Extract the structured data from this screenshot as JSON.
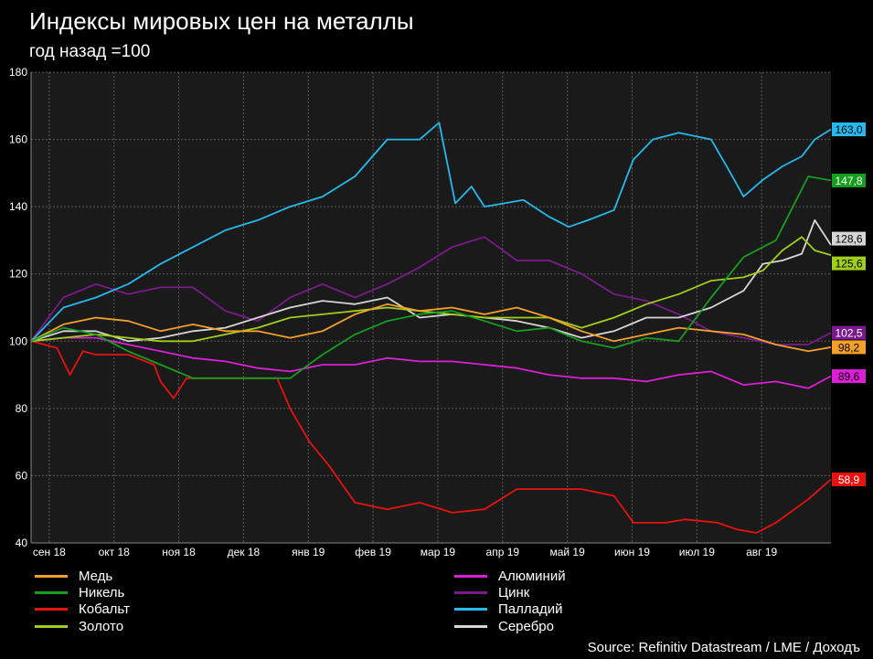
{
  "title": "Индексы мировых цен на металлы",
  "subtitle": "год назад =100",
  "source": "Source: Refinitiv Datastream / LME / Доходъ",
  "chart_data": {
    "type": "line",
    "ylim": [
      40,
      180
    ],
    "yticks": [
      40,
      60,
      80,
      100,
      120,
      140,
      160,
      180
    ],
    "grid": true,
    "xrange": [
      0,
      12.35
    ],
    "xticks": [
      {
        "label": "сен 18",
        "x": 0.28
      },
      {
        "label": "окт 18",
        "x": 1.28
      },
      {
        "label": "ноя 18",
        "x": 2.28
      },
      {
        "label": "дек 18",
        "x": 3.28
      },
      {
        "label": "янв 19",
        "x": 4.28
      },
      {
        "label": "фев 19",
        "x": 5.28
      },
      {
        "label": "мар 19",
        "x": 6.28
      },
      {
        "label": "апр 19",
        "x": 7.28
      },
      {
        "label": "май 19",
        "x": 8.28
      },
      {
        "label": "июн 19",
        "x": 9.28
      },
      {
        "label": "июл 19",
        "x": 10.28
      },
      {
        "label": "авг 19",
        "x": 11.28
      }
    ],
    "series": [
      {
        "name": "Медь",
        "color": "#f5a02a",
        "end_label": "98,2",
        "x": [
          0,
          0.5,
          1,
          1.5,
          2,
          2.5,
          3,
          3.5,
          4,
          4.5,
          5,
          5.5,
          6,
          6.5,
          7,
          7.5,
          8,
          8.5,
          9,
          9.5,
          10,
          10.5,
          11,
          11.5,
          12,
          12.35
        ],
        "y": [
          100,
          105,
          107,
          106,
          103,
          105,
          103,
          103,
          101,
          103,
          108,
          111,
          109,
          110,
          108,
          110,
          107,
          103,
          100,
          102,
          104,
          103,
          102,
          99,
          97,
          98.2
        ]
      },
      {
        "name": "Никель",
        "color": "#169e1e",
        "end_label": "147,8",
        "x": [
          0,
          0.5,
          1,
          1.5,
          2,
          2.5,
          3,
          3.5,
          4,
          4.5,
          5,
          5.5,
          6,
          6.5,
          7,
          7.5,
          8,
          8.5,
          9,
          9.5,
          10,
          10.5,
          11,
          11.5,
          12,
          12.35
        ],
        "y": [
          100,
          104,
          102,
          97,
          93,
          89,
          89,
          89,
          89,
          96,
          102,
          106,
          108,
          109,
          106,
          103,
          104,
          100,
          98,
          101,
          100,
          113,
          125,
          130,
          149,
          147.8
        ]
      },
      {
        "name": "Кобальт",
        "color": "#e8120e",
        "end_label": "58,9",
        "x": [
          0,
          0.4,
          0.6,
          0.8,
          1,
          1.5,
          1.9,
          2,
          2.2,
          2.4,
          2.8,
          3.3,
          3.6,
          3.8,
          4,
          4.3,
          4.6,
          5,
          5.5,
          6,
          6.5,
          7,
          7.5,
          8,
          8.5,
          9,
          9.3,
          9.8,
          10.1,
          10.6,
          10.9,
          11.2,
          11.5,
          12,
          12.35
        ],
        "y": [
          100,
          98,
          90,
          97,
          96,
          96,
          93,
          88,
          83,
          89,
          89,
          89,
          89,
          89,
          80,
          70,
          63,
          52,
          50,
          52,
          49,
          50,
          56,
          56,
          56,
          54,
          46,
          46,
          47,
          46,
          44,
          43,
          46,
          53,
          58.9
        ]
      },
      {
        "name": "Золото",
        "color": "#9fcf1c",
        "end_label": "125,6",
        "x": [
          0,
          0.5,
          1,
          1.5,
          2,
          2.5,
          3,
          3.5,
          4,
          4.5,
          5,
          5.5,
          6,
          6.5,
          7,
          7.5,
          8,
          8.5,
          9,
          9.5,
          10,
          10.5,
          11,
          11.3,
          11.6,
          11.9,
          12.1,
          12.35
        ],
        "y": [
          100,
          101,
          102,
          101,
          100,
          100,
          102,
          104,
          107,
          108,
          109,
          110,
          109,
          108,
          107,
          107,
          107,
          104,
          107,
          111,
          114,
          118,
          119,
          121,
          127,
          131,
          127,
          125.6
        ]
      },
      {
        "name": "Алюминий",
        "color": "#dc1fd6",
        "end_label": "89,6",
        "x": [
          0,
          0.5,
          1,
          1.5,
          2,
          2.5,
          3,
          3.5,
          4,
          4.5,
          5,
          5.5,
          6,
          6.5,
          7,
          7.5,
          8,
          8.5,
          9,
          9.5,
          10,
          10.5,
          11,
          11.5,
          12,
          12.35
        ],
        "y": [
          100,
          101,
          101,
          99,
          97,
          95,
          94,
          92,
          91,
          93,
          93,
          95,
          94,
          94,
          93,
          92,
          90,
          89,
          89,
          88,
          90,
          91,
          87,
          88,
          86,
          89.6
        ]
      },
      {
        "name": "Цинк",
        "color": "#7a1a8c",
        "end_label": "102,5",
        "x": [
          0,
          0.5,
          1,
          1.5,
          2,
          2.5,
          3,
          3.5,
          4,
          4.5,
          5,
          5.5,
          6,
          6.5,
          7,
          7.5,
          8,
          8.5,
          9,
          9.5,
          10,
          10.5,
          11,
          11.5,
          12,
          12.35
        ],
        "y": [
          100,
          113,
          117,
          114,
          116,
          116,
          109,
          106,
          113,
          117,
          113,
          117,
          122,
          128,
          131,
          124,
          124,
          120,
          114,
          112,
          108,
          103,
          101,
          99,
          99,
          102.5
        ]
      },
      {
        "name": "Палладий",
        "color": "#27b8ec",
        "end_label": "163,0",
        "x": [
          0,
          0.5,
          1,
          1.5,
          2,
          2.5,
          3,
          3.5,
          4,
          4.5,
          5,
          5.5,
          6,
          6.3,
          6.55,
          6.8,
          7,
          7.3,
          7.6,
          8,
          8.3,
          8.6,
          9,
          9.3,
          9.6,
          10,
          10.5,
          10.8,
          11,
          11.3,
          11.6,
          11.9,
          12.1,
          12.35
        ],
        "y": [
          100,
          110,
          113,
          117,
          123,
          128,
          133,
          136,
          140,
          143,
          149,
          160,
          160,
          165,
          141,
          146,
          140,
          141,
          142,
          137,
          134,
          136,
          139,
          154,
          160,
          162,
          160,
          150,
          143,
          148,
          152,
          155,
          160,
          163
        ]
      },
      {
        "name": "Серебро",
        "color": "#d6d6d6",
        "end_label": "128,6",
        "x": [
          0,
          0.5,
          1,
          1.5,
          2,
          2.5,
          3,
          3.5,
          4,
          4.5,
          5,
          5.5,
          6,
          6.5,
          7,
          7.5,
          8,
          8.5,
          9,
          9.5,
          10,
          10.5,
          11,
          11.3,
          11.6,
          11.9,
          12.1,
          12.35
        ],
        "y": [
          100,
          103,
          103,
          100,
          101,
          103,
          104,
          107,
          110,
          112,
          111,
          113,
          107,
          108,
          107,
          106,
          104,
          101,
          103,
          107,
          107,
          110,
          115,
          123,
          124,
          126,
          136,
          128.6
        ]
      }
    ]
  }
}
